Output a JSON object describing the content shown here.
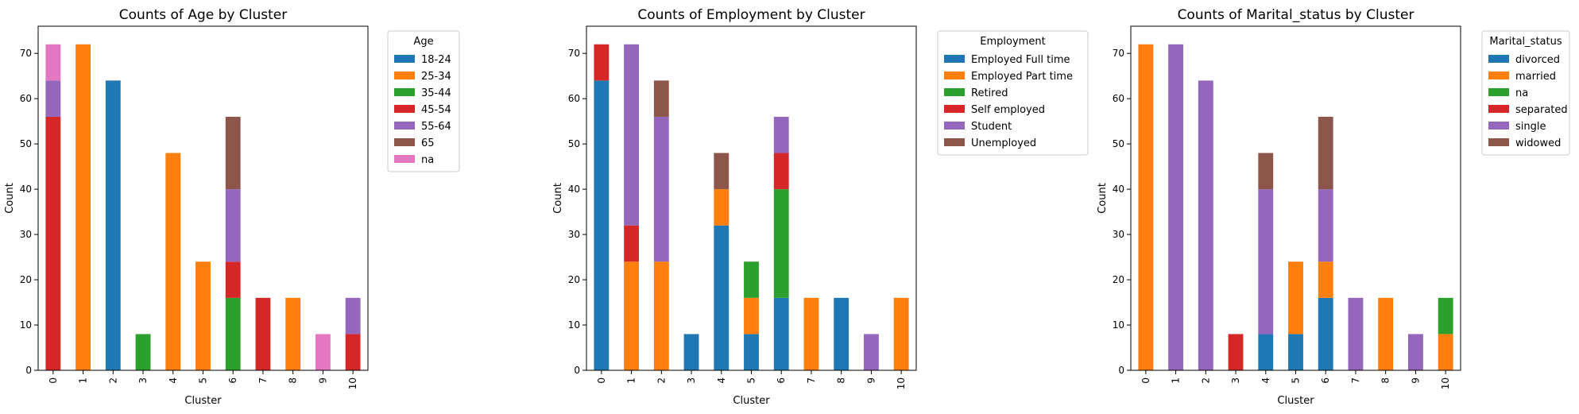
{
  "chart_data": [
    {
      "type": "bar",
      "stacked": true,
      "title": "Counts of Age by Cluster",
      "xlabel": "Cluster",
      "ylabel": "Count",
      "categories": [
        "0",
        "1",
        "2",
        "3",
        "4",
        "5",
        "6",
        "7",
        "8",
        "9",
        "10"
      ],
      "ylim": [
        0,
        76
      ],
      "yticks": [
        0,
        10,
        20,
        30,
        40,
        50,
        60,
        70
      ],
      "legend_title": "Age",
      "legend_position": "outside upper right",
      "series": [
        {
          "name": "18-24",
          "color": "#1f77b4",
          "values": [
            0,
            0,
            64,
            0,
            0,
            0,
            0,
            0,
            0,
            0,
            0
          ]
        },
        {
          "name": "25-34",
          "color": "#ff7f0e",
          "values": [
            0,
            72,
            0,
            0,
            48,
            24,
            0,
            0,
            16,
            0,
            0
          ]
        },
        {
          "name": "35-44",
          "color": "#2ca02c",
          "values": [
            0,
            0,
            0,
            8,
            0,
            0,
            16,
            0,
            0,
            0,
            0
          ]
        },
        {
          "name": "45-54",
          "color": "#d62728",
          "values": [
            56,
            0,
            0,
            0,
            0,
            0,
            8,
            16,
            0,
            0,
            8
          ]
        },
        {
          "name": "55-64",
          "color": "#9467bd",
          "values": [
            8,
            0,
            0,
            0,
            0,
            0,
            16,
            0,
            0,
            0,
            8
          ]
        },
        {
          "name": "65",
          "color": "#8c564b",
          "values": [
            0,
            0,
            0,
            0,
            0,
            0,
            16,
            0,
            0,
            0,
            0
          ]
        },
        {
          "name": "na",
          "color": "#e377c2",
          "values": [
            8,
            0,
            0,
            0,
            0,
            0,
            0,
            0,
            0,
            8,
            0
          ]
        }
      ]
    },
    {
      "type": "bar",
      "stacked": true,
      "title": "Counts of Employment by Cluster",
      "xlabel": "Cluster",
      "ylabel": "Count",
      "categories": [
        "0",
        "1",
        "2",
        "3",
        "4",
        "5",
        "6",
        "7",
        "8",
        "9",
        "10"
      ],
      "ylim": [
        0,
        76
      ],
      "yticks": [
        0,
        10,
        20,
        30,
        40,
        50,
        60,
        70
      ],
      "legend_title": "Employment",
      "legend_position": "outside upper right",
      "series": [
        {
          "name": "Employed Full time",
          "color": "#1f77b4",
          "values": [
            64,
            0,
            0,
            8,
            32,
            8,
            16,
            0,
            16,
            0,
            0
          ]
        },
        {
          "name": "Employed Part time",
          "color": "#ff7f0e",
          "values": [
            0,
            24,
            24,
            0,
            8,
            8,
            0,
            16,
            0,
            0,
            16
          ]
        },
        {
          "name": "Retired",
          "color": "#2ca02c",
          "values": [
            0,
            0,
            0,
            0,
            0,
            8,
            24,
            0,
            0,
            0,
            0
          ]
        },
        {
          "name": "Self employed",
          "color": "#d62728",
          "values": [
            8,
            8,
            0,
            0,
            0,
            0,
            8,
            0,
            0,
            0,
            0
          ]
        },
        {
          "name": "Student",
          "color": "#9467bd",
          "values": [
            0,
            40,
            32,
            0,
            0,
            0,
            8,
            0,
            0,
            8,
            0
          ]
        },
        {
          "name": "Unemployed",
          "color": "#8c564b",
          "values": [
            0,
            0,
            8,
            0,
            8,
            0,
            0,
            0,
            0,
            0,
            0
          ]
        }
      ]
    },
    {
      "type": "bar",
      "stacked": true,
      "title": "Counts of Marital_status by Cluster",
      "xlabel": "Cluster",
      "ylabel": "Count",
      "categories": [
        "0",
        "1",
        "2",
        "3",
        "4",
        "5",
        "6",
        "7",
        "8",
        "9",
        "10"
      ],
      "ylim": [
        0,
        76
      ],
      "yticks": [
        0,
        10,
        20,
        30,
        40,
        50,
        60,
        70
      ],
      "legend_title": "Marital_status",
      "legend_position": "outside upper right",
      "series": [
        {
          "name": "divorced",
          "color": "#1f77b4",
          "values": [
            0,
            0,
            0,
            0,
            8,
            8,
            16,
            0,
            0,
            0,
            0
          ]
        },
        {
          "name": "married",
          "color": "#ff7f0e",
          "values": [
            72,
            0,
            0,
            0,
            0,
            16,
            8,
            0,
            16,
            0,
            8
          ]
        },
        {
          "name": "na",
          "color": "#2ca02c",
          "values": [
            0,
            0,
            0,
            0,
            0,
            0,
            0,
            0,
            0,
            0,
            8
          ]
        },
        {
          "name": "separated",
          "color": "#d62728",
          "values": [
            0,
            0,
            0,
            8,
            0,
            0,
            0,
            0,
            0,
            0,
            0
          ]
        },
        {
          "name": "single",
          "color": "#9467bd",
          "values": [
            0,
            72,
            64,
            0,
            32,
            0,
            16,
            16,
            0,
            8,
            0
          ]
        },
        {
          "name": "widowed",
          "color": "#8c564b",
          "values": [
            0,
            0,
            0,
            0,
            8,
            0,
            16,
            0,
            0,
            0,
            0
          ]
        }
      ]
    }
  ]
}
